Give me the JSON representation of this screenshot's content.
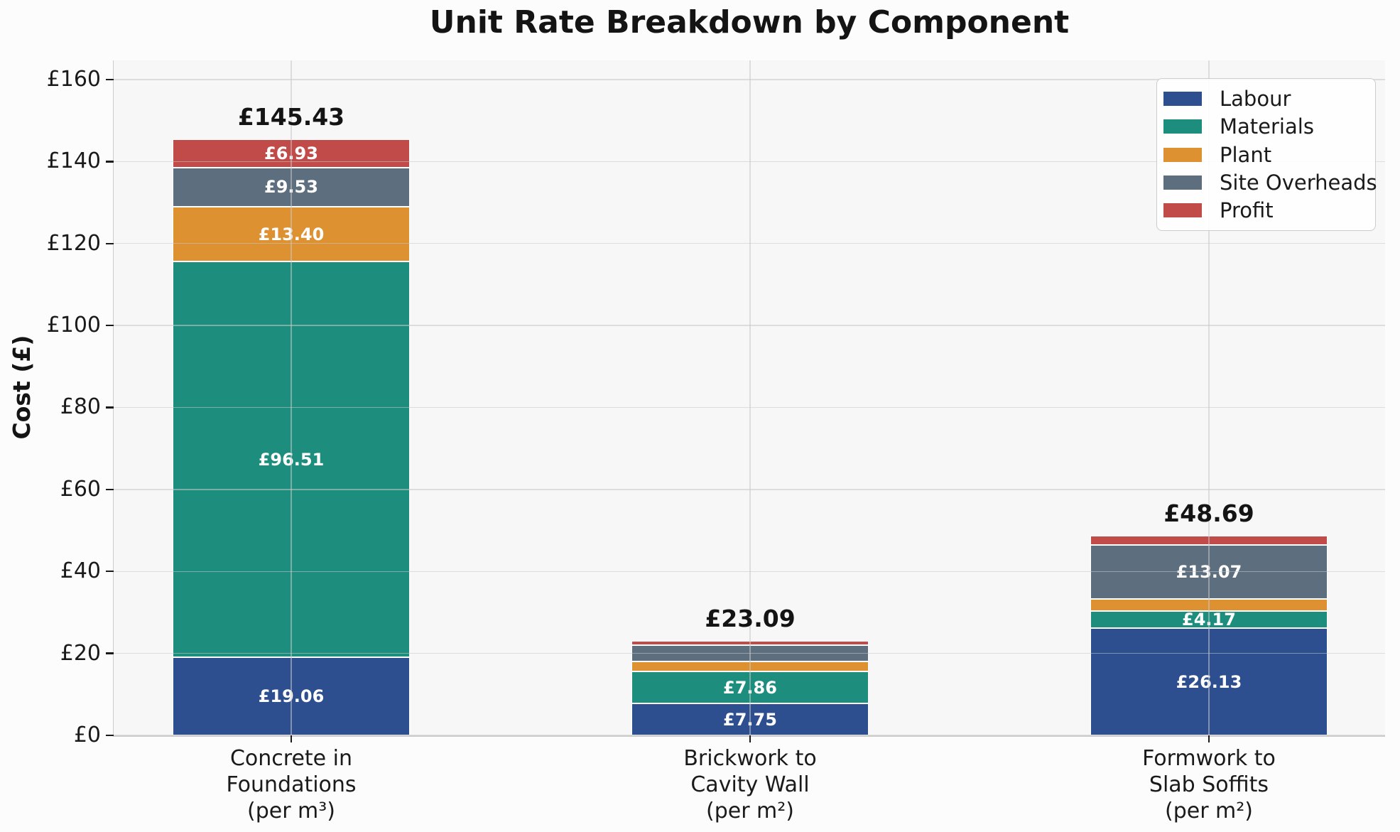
{
  "title": "Unit Rate Breakdown by Component",
  "y_axis": {
    "label": "Cost (£)",
    "ticks": [
      {
        "label": "£0",
        "value": 0
      },
      {
        "label": "£20",
        "value": 20
      },
      {
        "label": "£40",
        "value": 40
      },
      {
        "label": "£60",
        "value": 60
      },
      {
        "label": "£80",
        "value": 80
      },
      {
        "label": "£100",
        "value": 100
      },
      {
        "label": "£120",
        "value": 120
      },
      {
        "label": "£140",
        "value": 140
      },
      {
        "label": "£160",
        "value": 160
      }
    ]
  },
  "x_axis": {
    "category_lines": [
      [
        "Concrete in",
        "Foundations",
        "(per m³)"
      ],
      [
        "Brickwork to",
        "Cavity Wall",
        "(per m²)"
      ],
      [
        "Formwork to",
        "Slab Soffits",
        "(per m²)"
      ]
    ]
  },
  "legend": {
    "position": "upper right",
    "items": [
      {
        "label": "Labour",
        "color": "#2e4f8f"
      },
      {
        "label": "Materials",
        "color": "#1d8e7e"
      },
      {
        "label": "Plant",
        "color": "#de9130"
      },
      {
        "label": "Site Overheads",
        "color": "#5d6e7f"
      },
      {
        "label": "Profit",
        "color": "#c04b49"
      }
    ]
  },
  "chart_data": {
    "type": "bar",
    "stacked": true,
    "title": "Unit Rate Breakdown by Component",
    "ylabel": "Cost (£)",
    "xlabel": "",
    "ylim": [
      0,
      160
    ],
    "grid": true,
    "legend_position": "upper right",
    "categories": [
      "Concrete in Foundations (per m³)",
      "Brickwork to Cavity Wall (per m²)",
      "Formwork to Slab Soffits (per m²)"
    ],
    "series": [
      {
        "name": "Labour",
        "color": "#2e4f8f",
        "values": [
          19.06,
          7.75,
          26.13
        ],
        "value_labels": [
          "£19.06",
          "£7.75",
          "£26.13"
        ]
      },
      {
        "name": "Materials",
        "color": "#1d8e7e",
        "values": [
          96.51,
          7.86,
          4.17
        ],
        "value_labels": [
          "£96.51",
          "£7.86",
          "£4.17"
        ]
      },
      {
        "name": "Plant",
        "color": "#de9130",
        "values": [
          13.4,
          2.5,
          3.0
        ],
        "value_labels": [
          "£13.40",
          null,
          null
        ]
      },
      {
        "name": "Site Overheads",
        "color": "#5d6e7f",
        "values": [
          9.53,
          3.88,
          13.07
        ],
        "value_labels": [
          "£9.53",
          null,
          "£13.07"
        ]
      },
      {
        "name": "Profit",
        "color": "#c04b49",
        "values": [
          6.93,
          1.1,
          2.32
        ],
        "value_labels": [
          "£6.93",
          null,
          null
        ]
      }
    ],
    "totals": [
      145.43,
      23.09,
      48.69
    ],
    "total_labels": [
      "£145.43",
      "£23.09",
      "£48.69"
    ]
  },
  "colors": {
    "axes_background": "#f7f7f7",
    "figure_background": "#fcfcfc",
    "grid": "#c8c8c8",
    "spine": "#cccccc",
    "text": "#1a1a1a",
    "bar_edge": "#ffffff"
  }
}
